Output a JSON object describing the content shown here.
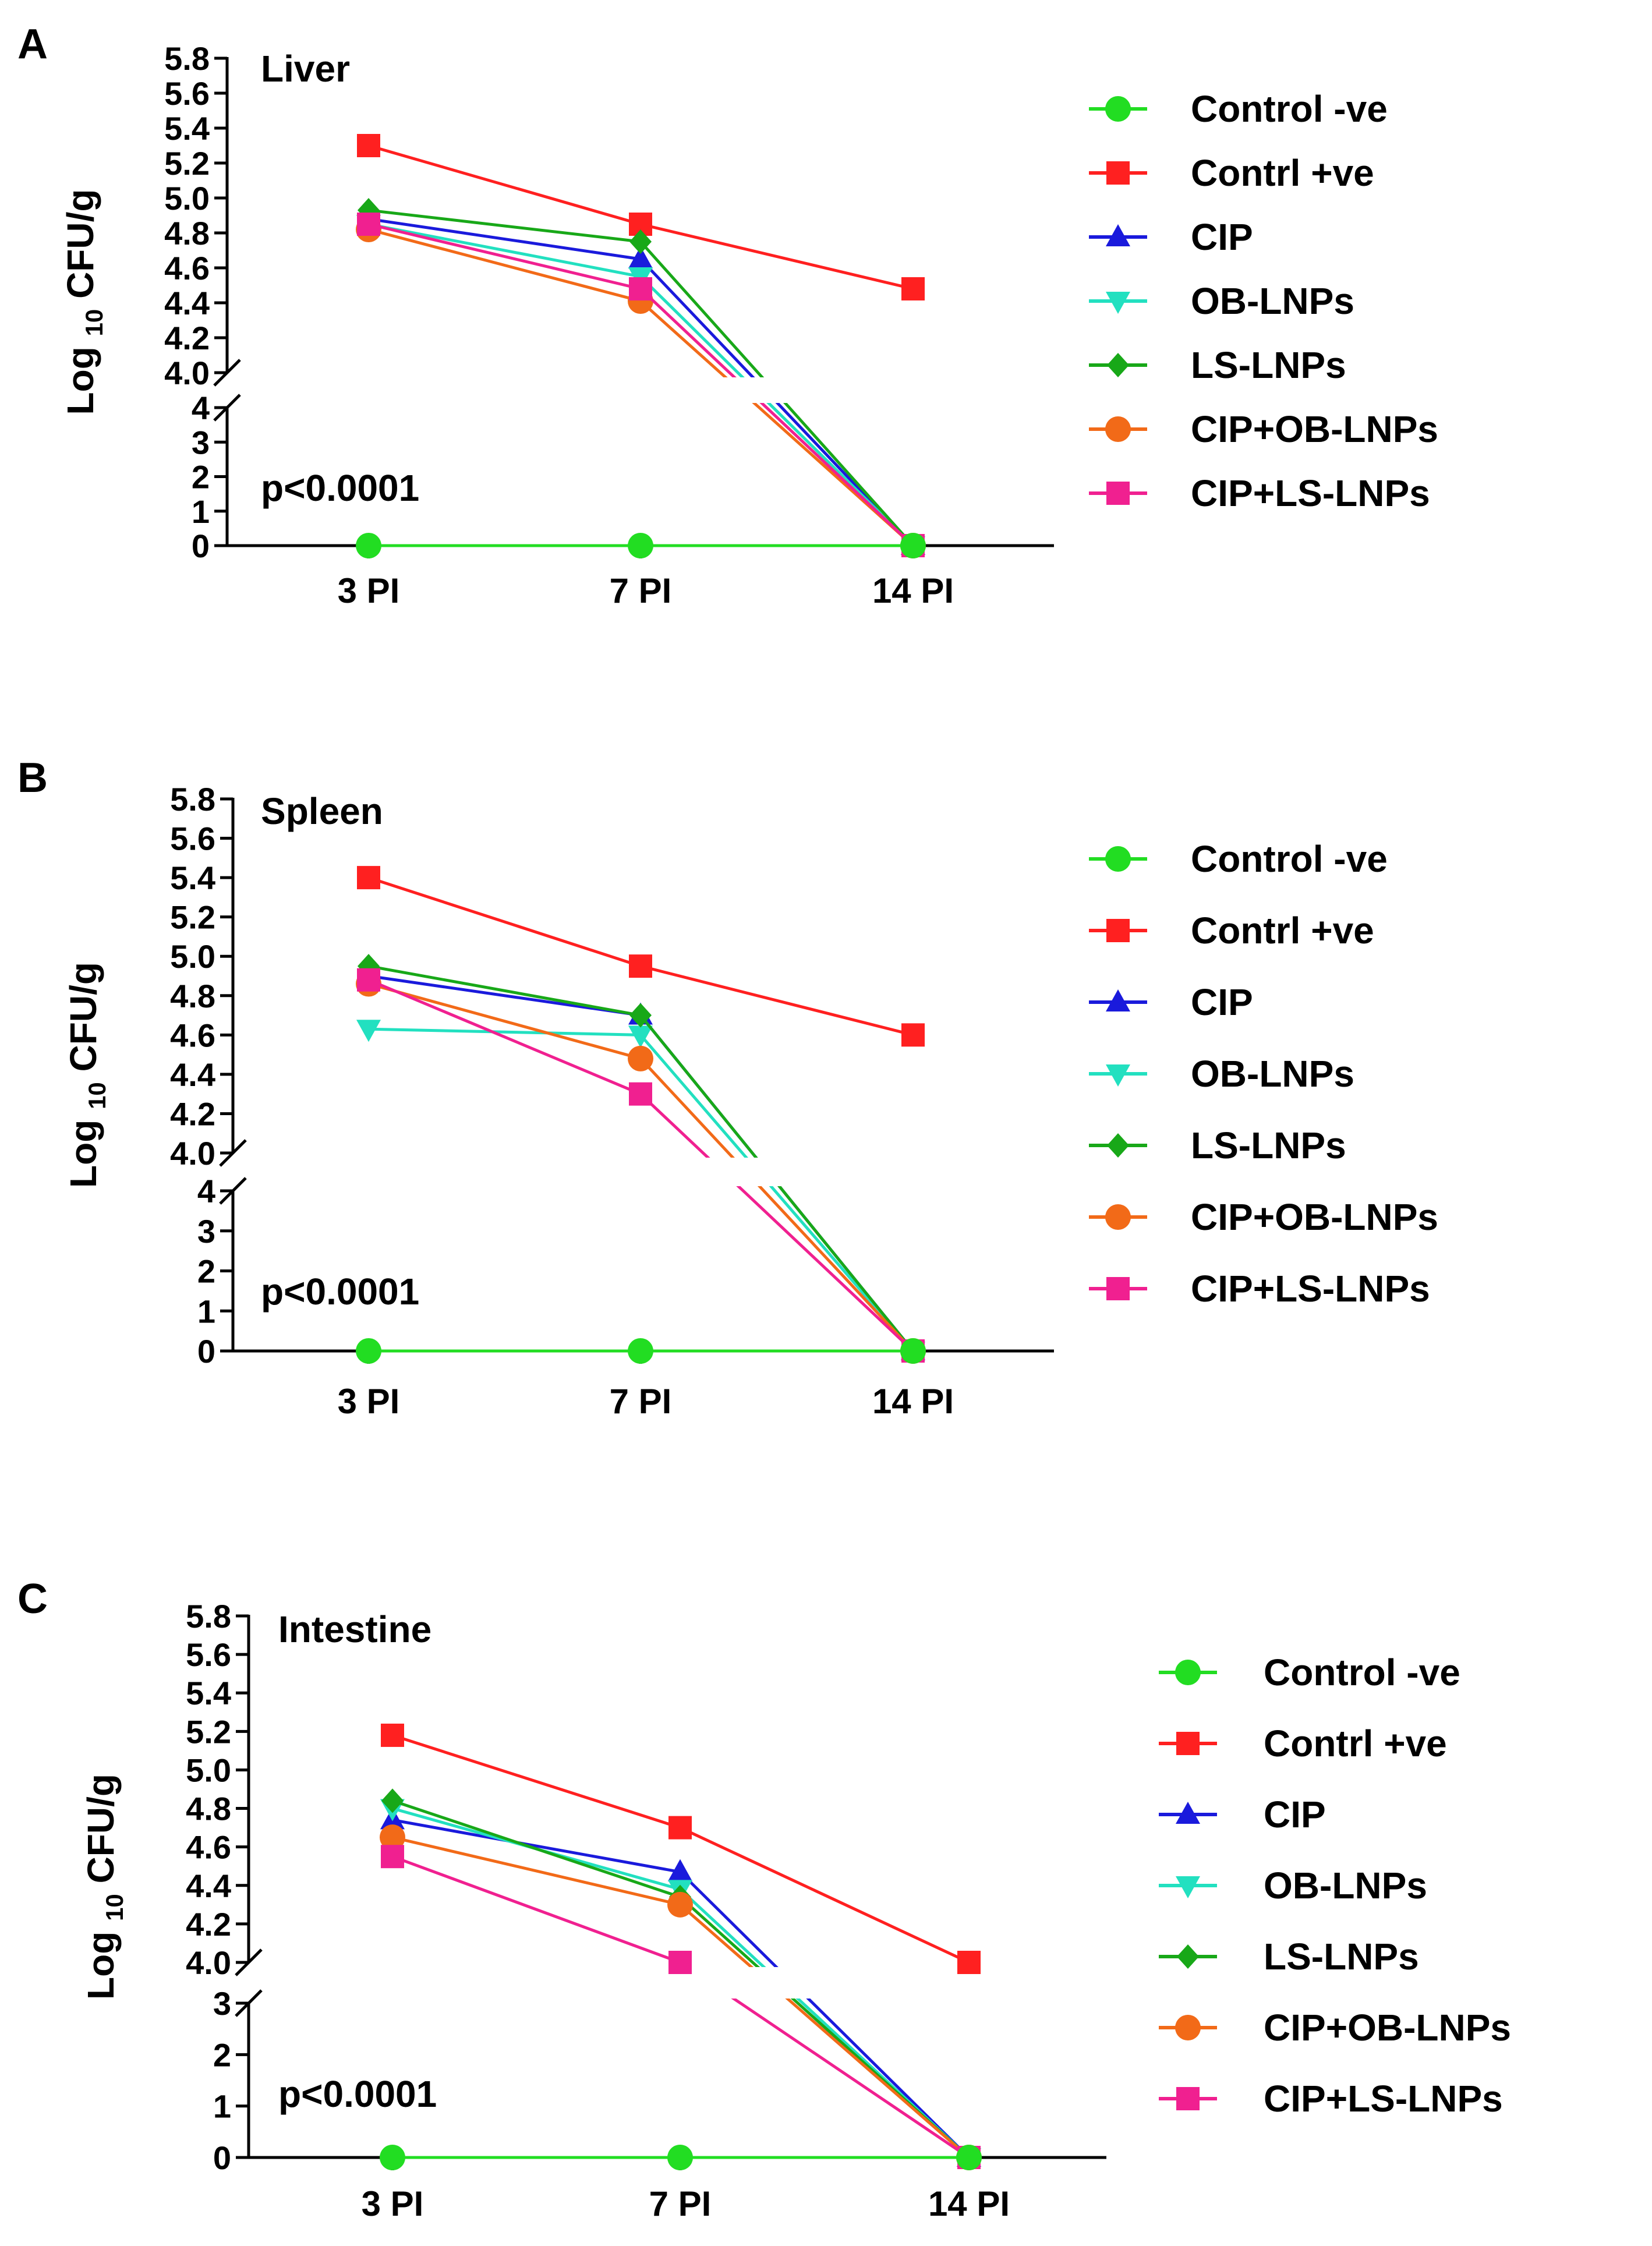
{
  "figure": {
    "y_axis_label_prefix": "Log",
    "y_axis_label_subscript": "10",
    "y_axis_label_suffix": "CFU/g"
  },
  "series_styles": [
    {
      "name": "Control -ve",
      "color": "#22dd22",
      "marker": "circle"
    },
    {
      "name": "Contrl +ve",
      "color": "#ff2020",
      "marker": "square"
    },
    {
      "name": "CIP",
      "color": "#1a1adc",
      "marker": "triangle-up"
    },
    {
      "name": "OB-LNPs",
      "color": "#22e0c0",
      "marker": "triangle-down"
    },
    {
      "name": "LS-LNPs",
      "color": "#18a818",
      "marker": "diamond"
    },
    {
      "name": "CIP+OB-LNPs",
      "color": "#f26a18",
      "marker": "circle"
    },
    {
      "name": "CIP+LS-LNPs",
      "color": "#f02090",
      "marker": "square"
    }
  ],
  "chart_data": [
    {
      "type": "line",
      "panel_letter": "A",
      "title": "Liver",
      "annotation": "p<0.0001",
      "categories": [
        "3 PI",
        "7 PI",
        "14 PI"
      ],
      "ylabel": "Log 10 CFU/g",
      "ylim_upper": [
        4.0,
        5.8
      ],
      "ylim_lower": [
        0,
        4
      ],
      "yticks_upper": [
        "4.0",
        "4.2",
        "4.4",
        "4.6",
        "4.8",
        "5.0",
        "5.2",
        "5.4",
        "5.6",
        "5.8"
      ],
      "yticks_lower": [
        "0",
        "1",
        "2",
        "3",
        "4"
      ],
      "series": [
        {
          "name": "Control -ve",
          "values": [
            0,
            0,
            0
          ]
        },
        {
          "name": "Contrl +ve",
          "values": [
            5.3,
            4.85,
            4.48
          ]
        },
        {
          "name": "CIP",
          "values": [
            4.88,
            4.65,
            0
          ]
        },
        {
          "name": "OB-LNPs",
          "values": [
            4.85,
            4.55,
            0
          ]
        },
        {
          "name": "LS-LNPs",
          "values": [
            4.93,
            4.75,
            0
          ]
        },
        {
          "name": "CIP+OB-LNPs",
          "values": [
            4.82,
            4.41,
            0
          ]
        },
        {
          "name": "CIP+LS-LNPs",
          "values": [
            4.85,
            4.48,
            0
          ]
        }
      ]
    },
    {
      "type": "line",
      "panel_letter": "B",
      "title": "Spleen",
      "annotation": "p<0.0001",
      "categories": [
        "3 PI",
        "7 PI",
        "14 PI"
      ],
      "ylabel": "Log 10 CFU/g",
      "ylim_upper": [
        4.0,
        5.8
      ],
      "ylim_lower": [
        0,
        4
      ],
      "yticks_upper": [
        "4.0",
        "4.2",
        "4.4",
        "4.6",
        "4.8",
        "5.0",
        "5.2",
        "5.4",
        "5.6",
        "5.8"
      ],
      "yticks_lower": [
        "0",
        "1",
        "2",
        "3",
        "4"
      ],
      "series": [
        {
          "name": "Control -ve",
          "values": [
            0,
            0,
            0
          ]
        },
        {
          "name": "Contrl +ve",
          "values": [
            5.4,
            4.95,
            4.6
          ]
        },
        {
          "name": "CIP",
          "values": [
            4.9,
            4.7,
            0
          ]
        },
        {
          "name": "OB-LNPs",
          "values": [
            4.63,
            4.6,
            0
          ]
        },
        {
          "name": "LS-LNPs",
          "values": [
            4.95,
            4.7,
            0
          ]
        },
        {
          "name": "CIP+OB-LNPs",
          "values": [
            4.86,
            4.48,
            0
          ]
        },
        {
          "name": "CIP+LS-LNPs",
          "values": [
            4.88,
            4.3,
            0
          ]
        }
      ]
    },
    {
      "type": "line",
      "panel_letter": "C",
      "title": "Intestine",
      "annotation": "p<0.0001",
      "categories": [
        "3 PI",
        "7 PI",
        "14 PI"
      ],
      "ylabel": "Log 10 CFU/g",
      "ylim_upper": [
        4.0,
        5.8
      ],
      "ylim_lower": [
        0,
        3
      ],
      "yticks_upper": [
        "4.0",
        "4.2",
        "4.4",
        "4.6",
        "4.8",
        "5.0",
        "5.2",
        "5.4",
        "5.6",
        "5.8"
      ],
      "yticks_lower": [
        "0",
        "1",
        "2",
        "3"
      ],
      "series": [
        {
          "name": "Control -ve",
          "values": [
            0,
            0,
            0
          ]
        },
        {
          "name": "Contrl +ve",
          "values": [
            5.18,
            4.7,
            4.0
          ]
        },
        {
          "name": "CIP",
          "values": [
            4.74,
            4.47,
            0
          ]
        },
        {
          "name": "OB-LNPs",
          "values": [
            4.8,
            4.38,
            0
          ]
        },
        {
          "name": "LS-LNPs",
          "values": [
            4.84,
            4.34,
            0
          ]
        },
        {
          "name": "CIP+OB-LNPs",
          "values": [
            4.65,
            4.3,
            0
          ]
        },
        {
          "name": "CIP+LS-LNPs",
          "values": [
            4.55,
            4.0,
            0
          ]
        }
      ]
    }
  ]
}
